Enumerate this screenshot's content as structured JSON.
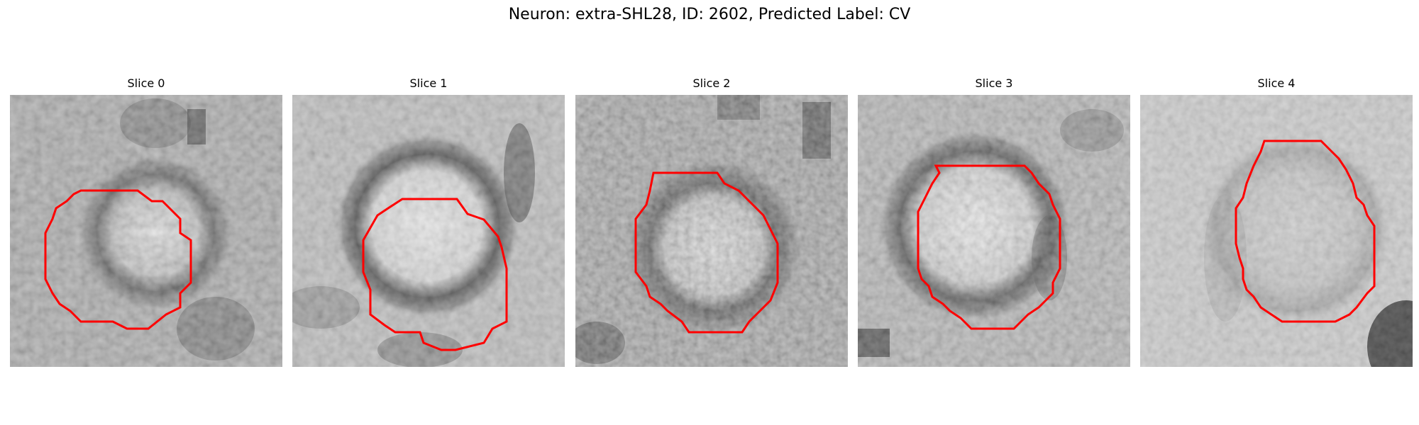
{
  "figure": {
    "title": "Neuron: extra-SHL28, ID: 2602, Predicted Label: CV"
  },
  "contour_color": "#ff0000",
  "colormap": "gray",
  "slices": [
    {
      "title": "Slice 0"
    },
    {
      "title": "Slice 1"
    },
    {
      "title": "Slice 2"
    },
    {
      "title": "Slice 3"
    },
    {
      "title": "Slice 4"
    }
  ]
}
